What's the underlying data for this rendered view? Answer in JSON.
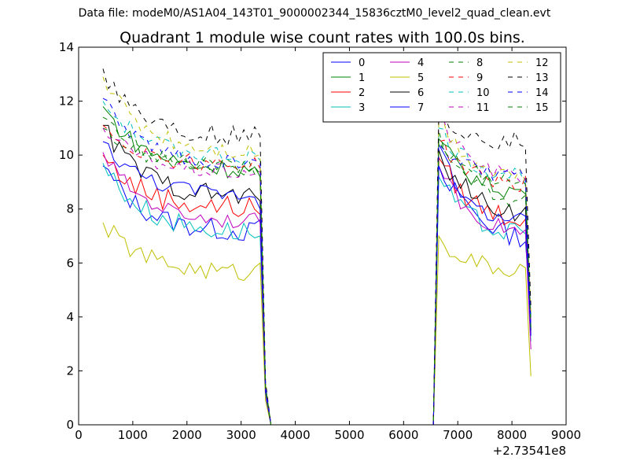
{
  "suptitle": "Data file: modeM0/AS1A04_143T01_9000002344_15836cztM0_level2_quad_clean.evt",
  "chart_data": {
    "type": "line",
    "title": "Quadrant 1 module wise count rates with 100.0s bins.",
    "xlabel": "",
    "ylabel": "",
    "x_offset_label": "+2.73541e8",
    "xlim": [
      0,
      9000
    ],
    "ylim": [
      0,
      14
    ],
    "xticks": [
      0,
      1000,
      2000,
      3000,
      4000,
      5000,
      6000,
      7000,
      8000,
      9000
    ],
    "yticks": [
      0,
      2,
      4,
      6,
      8,
      10,
      12,
      14
    ],
    "grid": false,
    "legend": {
      "placement": "top-right",
      "columns": 4
    },
    "segments": [
      {
        "x_start": 450,
        "x_end": 3350,
        "step": 100
      },
      {
        "x_start": 6650,
        "x_end": 8350,
        "step": 100
      }
    ],
    "zero_gap": [
      3550,
      6550
    ],
    "series": [
      {
        "name": "0",
        "color": "#0000ff",
        "dash": false,
        "start": 9.6,
        "plateau": 7.1,
        "drop": 7.6,
        "p2start": 10.4,
        "p2end": 6.7,
        "p2last": 4.1,
        "amp": 0.4
      },
      {
        "name": "1",
        "color": "#008000",
        "dash": false,
        "start": 11.8,
        "plateau": 9.4,
        "drop": 9.2,
        "p2start": 10.6,
        "p2end": 8.5,
        "p2last": 4.0,
        "amp": 0.35
      },
      {
        "name": "2",
        "color": "#ff0000",
        "dash": false,
        "start": 10.0,
        "plateau": 8.0,
        "drop": 7.8,
        "p2start": 9.9,
        "p2end": 7.5,
        "p2last": 3.4,
        "amp": 0.45
      },
      {
        "name": "3",
        "color": "#00bfbf",
        "dash": false,
        "start": 9.7,
        "plateau": 7.1,
        "drop": 7.0,
        "p2start": 9.2,
        "p2end": 6.9,
        "p2last": 3.1,
        "amp": 0.4
      },
      {
        "name": "4",
        "color": "#bf00bf",
        "dash": false,
        "start": 10.1,
        "plateau": 7.5,
        "drop": 7.5,
        "p2start": 9.6,
        "p2end": 7.0,
        "p2last": 2.8,
        "amp": 0.3
      },
      {
        "name": "5",
        "color": "#bfbf00",
        "dash": false,
        "start": 7.5,
        "plateau": 5.6,
        "drop": 6.0,
        "p2start": 7.0,
        "p2end": 5.6,
        "p2last": 1.8,
        "amp": 0.35
      },
      {
        "name": "6",
        "color": "#000000",
        "dash": false,
        "start": 11.1,
        "plateau": 8.4,
        "drop": 8.3,
        "p2start": 10.2,
        "p2end": 7.7,
        "p2last": 3.5,
        "amp": 0.4
      },
      {
        "name": "7",
        "color": "#0000ff",
        "dash": false,
        "start": 10.5,
        "plateau": 8.5,
        "drop": 8.0,
        "p2start": 9.6,
        "p2end": 7.4,
        "p2last": 3.3,
        "amp": 0.3
      },
      {
        "name": "8",
        "color": "#008000",
        "dash": true,
        "start": 11.0,
        "plateau": 9.5,
        "drop": 9.2,
        "p2start": 10.9,
        "p2end": 8.1,
        "p2last": 3.6,
        "amp": 0.3
      },
      {
        "name": "9",
        "color": "#ff0000",
        "dash": true,
        "start": 11.1,
        "plateau": 9.6,
        "drop": 9.5,
        "p2start": 10.5,
        "p2end": 8.8,
        "p2last": 3.7,
        "amp": 0.35
      },
      {
        "name": "10",
        "color": "#00bfbf",
        "dash": true,
        "start": 12.0,
        "plateau": 9.9,
        "drop": 9.8,
        "p2start": 11.0,
        "p2end": 9.1,
        "p2last": 3.9,
        "amp": 0.35
      },
      {
        "name": "11",
        "color": "#bf00bf",
        "dash": true,
        "start": 11.0,
        "plateau": 9.3,
        "drop": 9.4,
        "p2start": 11.5,
        "p2end": 9.0,
        "p2last": 3.8,
        "amp": 0.3
      },
      {
        "name": "12",
        "color": "#bfbf00",
        "dash": true,
        "start": 12.9,
        "plateau": 10.1,
        "drop": 10.0,
        "p2start": 11.4,
        "p2end": 9.1,
        "p2last": 4.2,
        "amp": 0.35
      },
      {
        "name": "13",
        "color": "#000000",
        "dash": true,
        "start": 13.2,
        "plateau": 10.6,
        "drop": 10.7,
        "p2start": 11.6,
        "p2end": 10.4,
        "p2last": 4.3,
        "amp": 0.4
      },
      {
        "name": "14",
        "color": "#0000ff",
        "dash": true,
        "start": 12.1,
        "plateau": 9.6,
        "drop": 9.7,
        "p2start": 10.4,
        "p2end": 9.1,
        "p2last": 3.6,
        "amp": 0.3
      },
      {
        "name": "15",
        "color": "#008000",
        "dash": true,
        "start": 11.4,
        "plateau": 9.5,
        "drop": 9.3,
        "p2start": 10.5,
        "p2end": 8.9,
        "p2last": 3.6,
        "amp": 0.3
      }
    ]
  }
}
